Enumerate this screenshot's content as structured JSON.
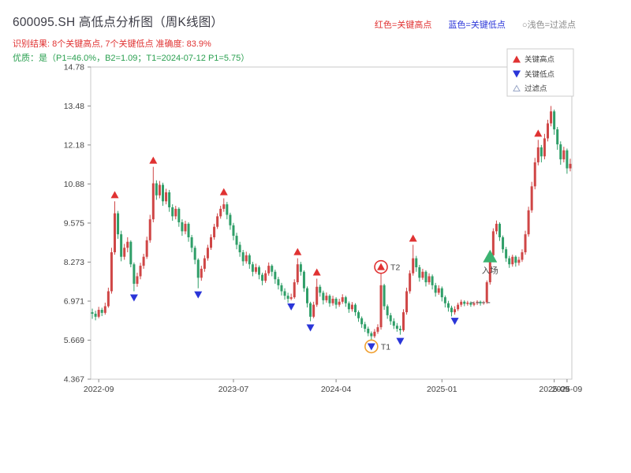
{
  "header": {
    "title": "600095.SH 高低点分析图（周K线图）",
    "legend_high": "红色=关键高点",
    "legend_low": "蓝色=关键低点",
    "legend_filter": "○浅色=过滤点",
    "result_line": "识别结果: 8个关键高点, 7个关键低点  准确度: 83.9%",
    "quality_line": "优质：是（P1=46.0%，B2=1.09；T1=2024-07-12 P1=5.75）"
  },
  "colors": {
    "up_candle": "#cf4646",
    "down_candle": "#2f9e68",
    "key_high": "#e03232",
    "key_low": "#2a35d8",
    "entry": "#3cb371",
    "t1_circle": "#f0a030",
    "t2_circle": "#e03232",
    "filter_marker": "#9aa7c7",
    "frame": "#c8c8c8",
    "dash_line": "#777777"
  },
  "chart_data": {
    "type": "candlestick",
    "symbol": "600095.SH",
    "period": "weekly",
    "title": "600095.SH 高低点分析图（周K线图）",
    "ylim": [
      4.367,
      14.78
    ],
    "y_ticks": [
      "14.78",
      "13.48",
      "12.18",
      "10.88",
      "9.575",
      "8.273",
      "6.971",
      "5.669",
      "4.367"
    ],
    "x_ticks": [
      {
        "index": 2,
        "label": "2022-09"
      },
      {
        "index": 44,
        "label": "2023-07"
      },
      {
        "index": 76,
        "label": "2024-04"
      },
      {
        "index": 109,
        "label": "2025-01"
      },
      {
        "index": 144,
        "label": "2025-09"
      },
      {
        "index": 148,
        "label": "2025-09"
      }
    ],
    "candles": [
      [
        6.6,
        6.72,
        6.38,
        6.55
      ],
      [
        6.55,
        6.65,
        6.33,
        6.45
      ],
      [
        6.45,
        6.78,
        6.4,
        6.68
      ],
      [
        6.68,
        6.75,
        6.47,
        6.58
      ],
      [
        6.58,
        6.92,
        6.52,
        6.8
      ],
      [
        6.8,
        7.42,
        6.75,
        7.3
      ],
      [
        7.3,
        8.75,
        7.22,
        8.6
      ],
      [
        8.6,
        10.3,
        8.52,
        9.9
      ],
      [
        9.9,
        9.98,
        9.05,
        9.2
      ],
      [
        9.2,
        9.32,
        8.3,
        8.45
      ],
      [
        8.45,
        8.88,
        8.35,
        8.75
      ],
      [
        8.75,
        9.1,
        8.6,
        8.95
      ],
      [
        8.95,
        9.0,
        8.1,
        8.2
      ],
      [
        8.2,
        8.26,
        7.3,
        7.55
      ],
      [
        7.55,
        7.92,
        7.45,
        7.8
      ],
      [
        7.8,
        8.25,
        7.7,
        8.15
      ],
      [
        8.15,
        8.55,
        8.05,
        8.45
      ],
      [
        8.45,
        9.12,
        8.38,
        9.0
      ],
      [
        9.0,
        9.85,
        8.92,
        9.7
      ],
      [
        9.7,
        11.45,
        9.6,
        10.9
      ],
      [
        10.9,
        11.0,
        10.35,
        10.5
      ],
      [
        10.5,
        10.98,
        10.4,
        10.85
      ],
      [
        10.85,
        10.92,
        10.15,
        10.3
      ],
      [
        10.3,
        10.72,
        10.2,
        10.6
      ],
      [
        10.6,
        10.68,
        9.95,
        10.1
      ],
      [
        10.1,
        10.2,
        9.65,
        9.8
      ],
      [
        9.8,
        10.15,
        9.7,
        10.05
      ],
      [
        10.05,
        10.1,
        9.45,
        9.6
      ],
      [
        9.6,
        9.7,
        9.15,
        9.3
      ],
      [
        9.3,
        9.65,
        9.2,
        9.55
      ],
      [
        9.55,
        9.6,
        8.95,
        9.1
      ],
      [
        9.1,
        9.18,
        8.6,
        8.75
      ],
      [
        8.75,
        8.82,
        8.2,
        8.35
      ],
      [
        8.35,
        8.4,
        7.4,
        7.75
      ],
      [
        7.75,
        8.15,
        7.65,
        8.05
      ],
      [
        8.05,
        8.5,
        7.95,
        8.4
      ],
      [
        8.4,
        8.85,
        8.32,
        8.75
      ],
      [
        8.75,
        9.2,
        8.68,
        9.1
      ],
      [
        9.1,
        9.55,
        9.02,
        9.45
      ],
      [
        9.45,
        9.9,
        9.38,
        9.8
      ],
      [
        9.8,
        10.15,
        9.72,
        10.05
      ],
      [
        10.05,
        10.4,
        9.95,
        10.2
      ],
      [
        10.2,
        10.28,
        9.7,
        9.85
      ],
      [
        9.85,
        9.92,
        9.35,
        9.5
      ],
      [
        9.5,
        9.58,
        9.0,
        9.15
      ],
      [
        9.15,
        9.25,
        8.7,
        8.85
      ],
      [
        8.85,
        8.95,
        8.45,
        8.6
      ],
      [
        8.6,
        8.68,
        8.15,
        8.3
      ],
      [
        8.3,
        8.62,
        8.22,
        8.5
      ],
      [
        8.5,
        8.56,
        8.05,
        8.2
      ],
      [
        8.2,
        8.28,
        7.8,
        7.95
      ],
      [
        7.95,
        8.22,
        7.88,
        8.1
      ],
      [
        8.1,
        8.16,
        7.7,
        7.85
      ],
      [
        7.85,
        7.92,
        7.5,
        7.65
      ],
      [
        7.65,
        8.0,
        7.58,
        7.9
      ],
      [
        7.9,
        8.26,
        7.82,
        8.15
      ],
      [
        8.15,
        8.2,
        7.8,
        7.95
      ],
      [
        7.95,
        8.02,
        7.55,
        7.7
      ],
      [
        7.7,
        7.78,
        7.36,
        7.5
      ],
      [
        7.5,
        7.58,
        7.16,
        7.3
      ],
      [
        7.3,
        7.4,
        7.02,
        7.15
      ],
      [
        7.15,
        7.25,
        6.92,
        7.05
      ],
      [
        7.05,
        7.22,
        7.0,
        7.1
      ],
      [
        7.1,
        7.7,
        7.05,
        7.6
      ],
      [
        7.6,
        8.4,
        7.52,
        8.2
      ],
      [
        8.2,
        8.28,
        7.82,
        7.95
      ],
      [
        7.95,
        8.0,
        7.28,
        7.4
      ],
      [
        7.4,
        7.46,
        6.76,
        6.9
      ],
      [
        6.9,
        6.95,
        6.3,
        6.45
      ],
      [
        6.45,
        6.95,
        6.4,
        6.85
      ],
      [
        6.85,
        7.72,
        6.78,
        7.45
      ],
      [
        7.45,
        7.52,
        7.12,
        7.25
      ],
      [
        7.25,
        7.32,
        6.86,
        7.0
      ],
      [
        7.0,
        7.26,
        6.92,
        7.15
      ],
      [
        7.15,
        7.2,
        6.78,
        6.9
      ],
      [
        6.9,
        7.15,
        6.82,
        7.05
      ],
      [
        7.05,
        7.1,
        6.72,
        6.85
      ],
      [
        6.85,
        7.05,
        6.78,
        6.95
      ],
      [
        6.95,
        7.2,
        6.88,
        7.1
      ],
      [
        7.1,
        7.15,
        6.78,
        6.9
      ],
      [
        6.9,
        6.96,
        6.58,
        6.7
      ],
      [
        6.7,
        6.94,
        6.62,
        6.85
      ],
      [
        6.85,
        6.9,
        6.48,
        6.6
      ],
      [
        6.6,
        6.66,
        6.28,
        6.4
      ],
      [
        6.4,
        6.46,
        6.08,
        6.2
      ],
      [
        6.2,
        6.28,
        5.94,
        6.05
      ],
      [
        6.05,
        6.12,
        5.8,
        5.9
      ],
      [
        5.9,
        5.96,
        5.67,
        5.8
      ],
      [
        5.8,
        6.04,
        5.74,
        5.95
      ],
      [
        5.95,
        6.2,
        5.88,
        6.1
      ],
      [
        6.1,
        7.9,
        6.02,
        7.5
      ],
      [
        7.5,
        7.55,
        6.68,
        6.8
      ],
      [
        6.8,
        6.86,
        6.38,
        6.5
      ],
      [
        6.5,
        6.58,
        6.18,
        6.3
      ],
      [
        6.3,
        6.4,
        6.04,
        6.15
      ],
      [
        6.15,
        6.24,
        5.95,
        6.05
      ],
      [
        6.05,
        6.15,
        5.85,
        6.0
      ],
      [
        6.0,
        6.7,
        5.95,
        6.6
      ],
      [
        6.6,
        7.42,
        6.52,
        7.3
      ],
      [
        7.3,
        8.0,
        7.22,
        7.9
      ],
      [
        7.9,
        8.85,
        7.82,
        8.4
      ],
      [
        8.4,
        8.48,
        7.95,
        8.1
      ],
      [
        8.1,
        8.18,
        7.62,
        7.75
      ],
      [
        7.75,
        8.05,
        7.68,
        7.95
      ],
      [
        7.95,
        8.0,
        7.46,
        7.6
      ],
      [
        7.6,
        7.9,
        7.52,
        7.8
      ],
      [
        7.8,
        7.86,
        7.36,
        7.5
      ],
      [
        7.5,
        7.58,
        7.12,
        7.25
      ],
      [
        7.25,
        7.5,
        7.18,
        7.4
      ],
      [
        7.4,
        7.46,
        6.96,
        7.1
      ],
      [
        7.1,
        7.16,
        6.76,
        6.9
      ],
      [
        6.9,
        6.98,
        6.62,
        6.75
      ],
      [
        6.75,
        6.82,
        6.46,
        6.6
      ],
      [
        6.6,
        6.8,
        6.52,
        6.7
      ],
      [
        6.7,
        6.92,
        6.64,
        6.85
      ],
      [
        6.85,
        7.02,
        6.78,
        6.95
      ],
      [
        6.95,
        7.0,
        6.8,
        6.88
      ],
      [
        6.88,
        6.98,
        6.82,
        6.92
      ],
      [
        6.92,
        6.96,
        6.78,
        6.85
      ],
      [
        6.85,
        6.96,
        6.8,
        6.9
      ],
      [
        6.9,
        7.0,
        6.84,
        6.95
      ],
      [
        6.95,
        6.99,
        6.82,
        6.9
      ],
      [
        6.9,
        6.98,
        6.85,
        6.93
      ],
      [
        6.93,
        7.66,
        6.88,
        7.6
      ],
      [
        7.6,
        8.62,
        7.52,
        8.5
      ],
      [
        8.5,
        9.4,
        8.42,
        9.3
      ],
      [
        9.3,
        9.66,
        9.2,
        9.55
      ],
      [
        9.55,
        9.6,
        8.98,
        9.1
      ],
      [
        9.1,
        9.16,
        8.58,
        8.7
      ],
      [
        8.7,
        8.78,
        8.28,
        8.4
      ],
      [
        8.4,
        8.48,
        8.08,
        8.2
      ],
      [
        8.2,
        8.52,
        8.12,
        8.45
      ],
      [
        8.45,
        8.5,
        8.12,
        8.25
      ],
      [
        8.25,
        8.45,
        8.16,
        8.35
      ],
      [
        8.35,
        8.7,
        8.28,
        8.6
      ],
      [
        8.6,
        9.32,
        8.52,
        9.2
      ],
      [
        9.2,
        10.12,
        9.12,
        10.0
      ],
      [
        10.0,
        10.95,
        9.92,
        10.8
      ],
      [
        10.8,
        11.75,
        10.7,
        11.6
      ],
      [
        11.6,
        12.35,
        11.5,
        12.1
      ],
      [
        12.1,
        12.18,
        11.6,
        11.8
      ],
      [
        11.8,
        12.55,
        11.7,
        12.4
      ],
      [
        12.4,
        13.02,
        12.3,
        12.9
      ],
      [
        12.9,
        13.48,
        12.8,
        13.3
      ],
      [
        13.3,
        13.36,
        12.52,
        12.7
      ],
      [
        12.7,
        12.78,
        12.02,
        12.2
      ],
      [
        12.2,
        12.3,
        11.52,
        11.7
      ],
      [
        11.7,
        12.12,
        11.6,
        12.0
      ],
      [
        12.0,
        12.06,
        11.22,
        11.4
      ],
      [
        11.4,
        11.72,
        11.3,
        11.55
      ]
    ],
    "key_high_indices": [
      7,
      19,
      41,
      64,
      70,
      90,
      100,
      139
    ],
    "key_low_indices": [
      13,
      33,
      62,
      68,
      87,
      96,
      113
    ],
    "key_high_count": 8,
    "key_low_count": 7,
    "accuracy": "83.9%",
    "annotations": {
      "t1": {
        "index": 87,
        "price": 5.67,
        "label": "T1"
      },
      "t2": {
        "index": 90,
        "price": 7.9,
        "label": "T2"
      },
      "entry": {
        "index": 124,
        "price": 8.45,
        "label": "入场"
      },
      "dash_line": {
        "from": 118,
        "to": 124,
        "price": 6.92
      }
    },
    "legend_box": {
      "high": "关键高点",
      "low": "关键低点",
      "filter": "过滤点"
    }
  }
}
